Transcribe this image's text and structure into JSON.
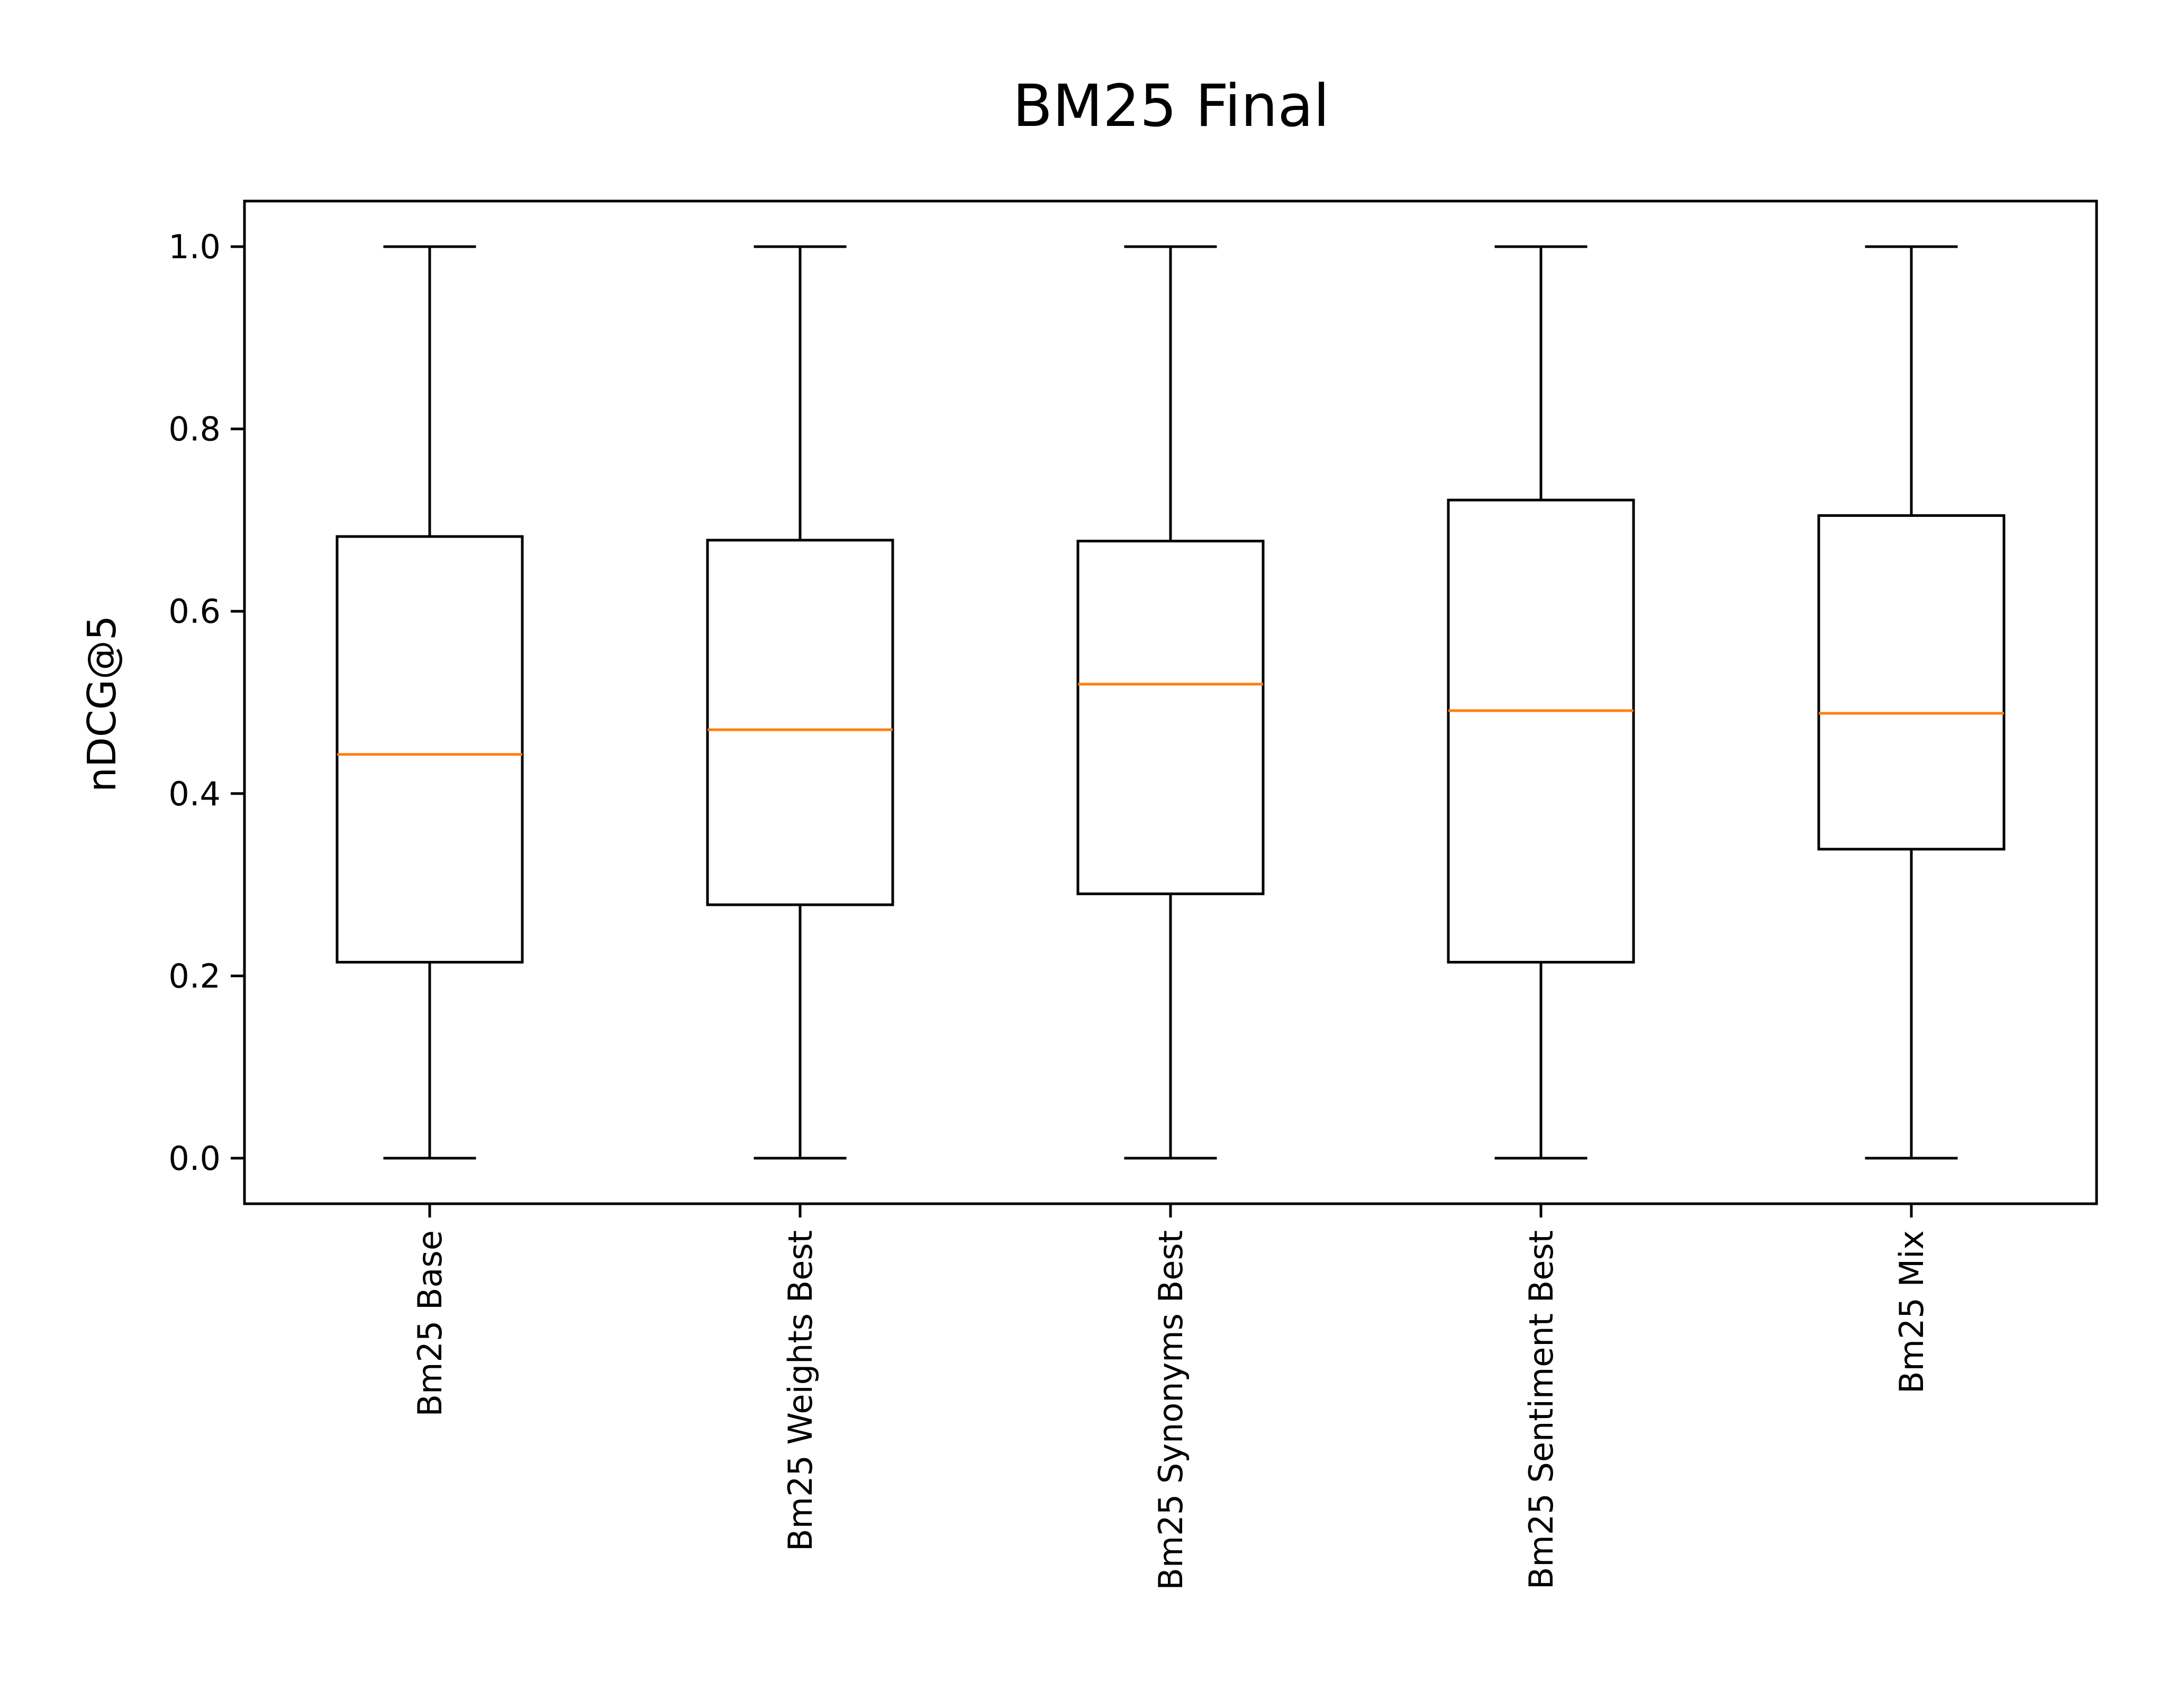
{
  "chart_data": {
    "type": "box",
    "title": "BM25 Final",
    "xlabel": "",
    "ylabel": "nDCG@5",
    "ylim": [
      -0.05,
      1.05
    ],
    "yticks": [
      "0.0",
      "0.2",
      "0.4",
      "0.6",
      "0.8",
      "1.0"
    ],
    "grid": false,
    "legend": "none",
    "categories": [
      "Bm25 Base",
      "Bm25 Weights Best",
      "Bm25 Synonyms Best",
      "Bm25 Sentiment Best",
      "Bm25 Mix"
    ],
    "boxes": [
      {
        "whisker_low": 0.0,
        "q1": 0.215,
        "median": 0.443,
        "q3": 0.682,
        "whisker_high": 1.0
      },
      {
        "whisker_low": 0.0,
        "q1": 0.278,
        "median": 0.47,
        "q3": 0.678,
        "whisker_high": 1.0
      },
      {
        "whisker_low": 0.0,
        "q1": 0.29,
        "median": 0.52,
        "q3": 0.677,
        "whisker_high": 1.0
      },
      {
        "whisker_low": 0.0,
        "q1": 0.215,
        "median": 0.491,
        "q3": 0.722,
        "whisker_high": 1.0
      },
      {
        "whisker_low": 0.0,
        "q1": 0.339,
        "median": 0.488,
        "q3": 0.705,
        "whisker_high": 1.0
      }
    ],
    "colors": {
      "box": "#000000",
      "median": "#ff7f0e",
      "axes": "#000000"
    }
  }
}
